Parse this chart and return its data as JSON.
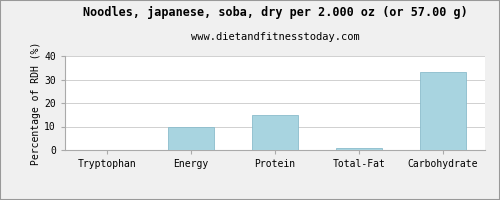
{
  "title": "Noodles, japanese, soba, dry per 2.000 oz (or 57.00 g)",
  "subtitle": "www.dietandfitnesstoday.com",
  "categories": [
    "Tryptophan",
    "Energy",
    "Protein",
    "Total-Fat",
    "Carbohydrate"
  ],
  "values": [
    0,
    10,
    15,
    1,
    33
  ],
  "bar_color": "#a8d4e0",
  "bar_edge_color": "#8bbccc",
  "ylabel": "Percentage of RDH (%)",
  "ylim": [
    0,
    40
  ],
  "yticks": [
    0,
    10,
    20,
    30,
    40
  ],
  "background_color": "#f0f0f0",
  "plot_bg_color": "#ffffff",
  "title_fontsize": 8.5,
  "subtitle_fontsize": 7.5,
  "ylabel_fontsize": 7,
  "tick_fontsize": 7,
  "xtick_fontsize": 7,
  "grid_color": "#d0d0d0",
  "border_color": "#999999"
}
